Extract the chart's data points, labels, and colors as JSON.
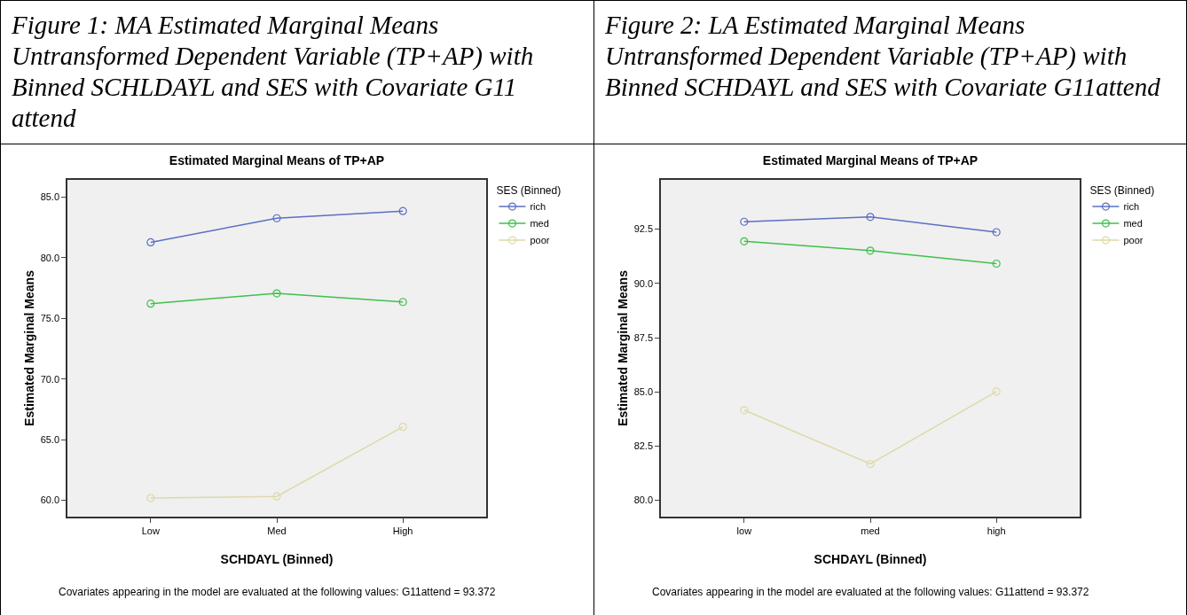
{
  "chart_data": [
    {
      "type": "line",
      "subtitle": "Figure 1: MA Estimated Marginal Means Untransformed Dependent Variable (TP+AP) with Binned SCHLDAYL and SES with Covariate G11 attend",
      "title": "Estimated Marginal Means of TP+AP",
      "xlabel": "SCHDAYL (Binned)",
      "ylabel": "Estimated Marginal Means",
      "legend_title": "SES (Binned)",
      "categories": [
        "Low",
        "Med",
        "High"
      ],
      "series": [
        {
          "name": "rich",
          "color": "#5b6fc4",
          "values": [
            81.28,
            83.27,
            83.86
          ]
        },
        {
          "name": "med",
          "color": "#3fc04c",
          "values": [
            76.22,
            77.07,
            76.36
          ]
        },
        {
          "name": "poor",
          "color": "#ddd9a8",
          "values": [
            60.18,
            60.32,
            66.06
          ]
        }
      ],
      "ylim": [
        58.65,
        86.43
      ],
      "yticks": [
        {
          "value": 60,
          "label": "60.0"
        },
        {
          "value": 65,
          "label": "65.0"
        },
        {
          "value": 70,
          "label": "70.0"
        },
        {
          "value": 75,
          "label": "75.0"
        },
        {
          "value": 80,
          "label": "80.0"
        },
        {
          "value": 85,
          "label": "85.0"
        }
      ],
      "grid": false,
      "legend": "top right",
      "marker": "circle",
      "line_style": "solid",
      "annotations": [
        "Covariates appearing in the model are evaluated at the following values: G11attend = 93.372"
      ]
    },
    {
      "type": "line",
      "subtitle": "Figure 2: LA Estimated Marginal Means Untransformed Dependent Variable (TP+AP) with Binned SCHDAYL and SES with Covariate G11attend",
      "title": "Estimated Marginal Means of TP+AP",
      "xlabel": "SCHDAYL (Binned)",
      "ylabel": "Estimated Marginal Means",
      "legend_title": "SES (Binned)",
      "categories": [
        "low",
        "med",
        "high"
      ],
      "series": [
        {
          "name": "rich",
          "color": "#5b6fc4",
          "values": [
            92.84,
            93.06,
            92.36
          ]
        },
        {
          "name": "med",
          "color": "#3fc04c",
          "values": [
            91.94,
            91.51,
            90.91
          ]
        },
        {
          "name": "poor",
          "color": "#ddd9a8",
          "values": [
            84.16,
            81.68,
            85.01
          ]
        }
      ],
      "ylim": [
        79.25,
        94.77
      ],
      "yticks": [
        {
          "value": 80,
          "label": "80.0"
        },
        {
          "value": 82.5,
          "label": "82.5"
        },
        {
          "value": 85,
          "label": "85.0"
        },
        {
          "value": 87.5,
          "label": "87.5"
        },
        {
          "value": 90,
          "label": "90.0"
        },
        {
          "value": 92.5,
          "label": "92.5"
        }
      ],
      "grid": false,
      "legend": "top right",
      "marker": "circle",
      "line_style": "solid",
      "annotations": [
        "Covariates appearing in the model are evaluated at the following values: G11attend = 93.372"
      ]
    }
  ]
}
